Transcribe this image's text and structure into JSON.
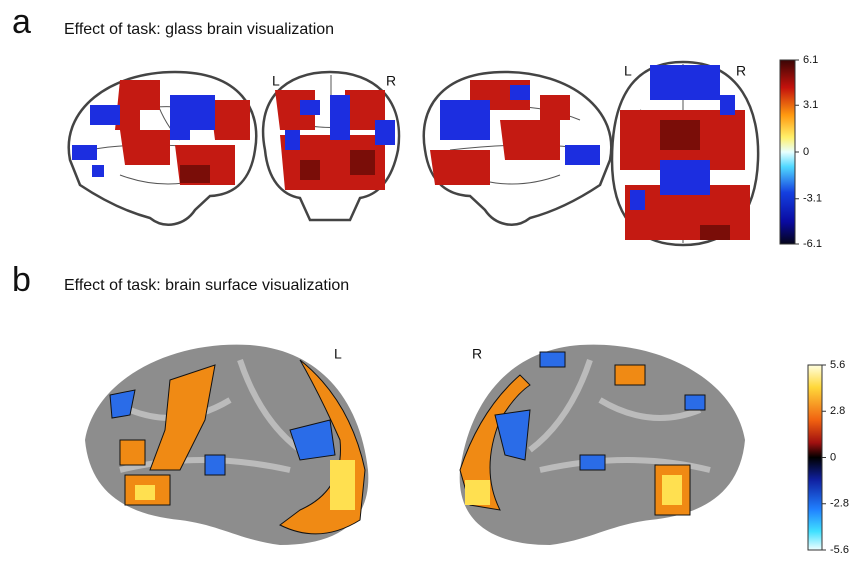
{
  "panels": [
    {
      "letter": "a",
      "title": "Effect of task: glass brain visualization",
      "labels": [
        "L",
        "R",
        "L",
        "R"
      ],
      "colorbar": {
        "ticks": [
          6.1,
          3.1,
          0,
          -3.1,
          -6.1
        ]
      }
    },
    {
      "letter": "b",
      "title": "Effect of task: brain surface visualization",
      "labels": [
        "L",
        "R"
      ],
      "colorbar": {
        "ticks": [
          5.6,
          2.8,
          0,
          -2.8,
          -5.6
        ]
      }
    }
  ]
}
